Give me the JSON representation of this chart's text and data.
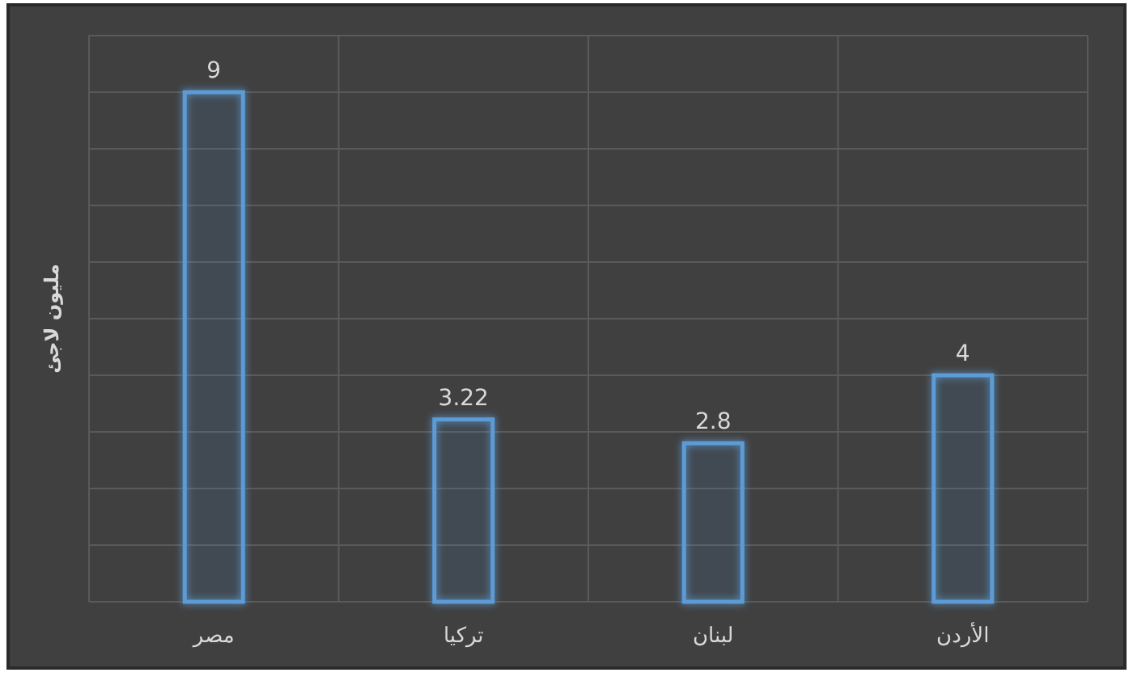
{
  "chart_data": {
    "type": "bar",
    "ylabel": "مليون لاجئ",
    "categories": [
      "مصر",
      "تركيا",
      "لبنان",
      "الأردن"
    ],
    "values": [
      9,
      3.22,
      2.8,
      4
    ],
    "color": "#5b9bd5",
    "ylim": [
      0,
      10
    ],
    "yticks": [
      {
        "value": 0,
        "label": null
      },
      {
        "value": 1,
        "label": null
      },
      {
        "value": 2,
        "label": null
      },
      {
        "value": 3,
        "label": null
      },
      {
        "value": 4,
        "label": null
      },
      {
        "value": 5,
        "label": null
      },
      {
        "value": 6,
        "label": null
      },
      {
        "value": 7,
        "label": null
      },
      {
        "value": 8,
        "label": null
      },
      {
        "value": 9,
        "label": null
      },
      {
        "value": 10,
        "label": null
      }
    ],
    "grid": true,
    "tick_labels": "x",
    "data_labels": true
  }
}
